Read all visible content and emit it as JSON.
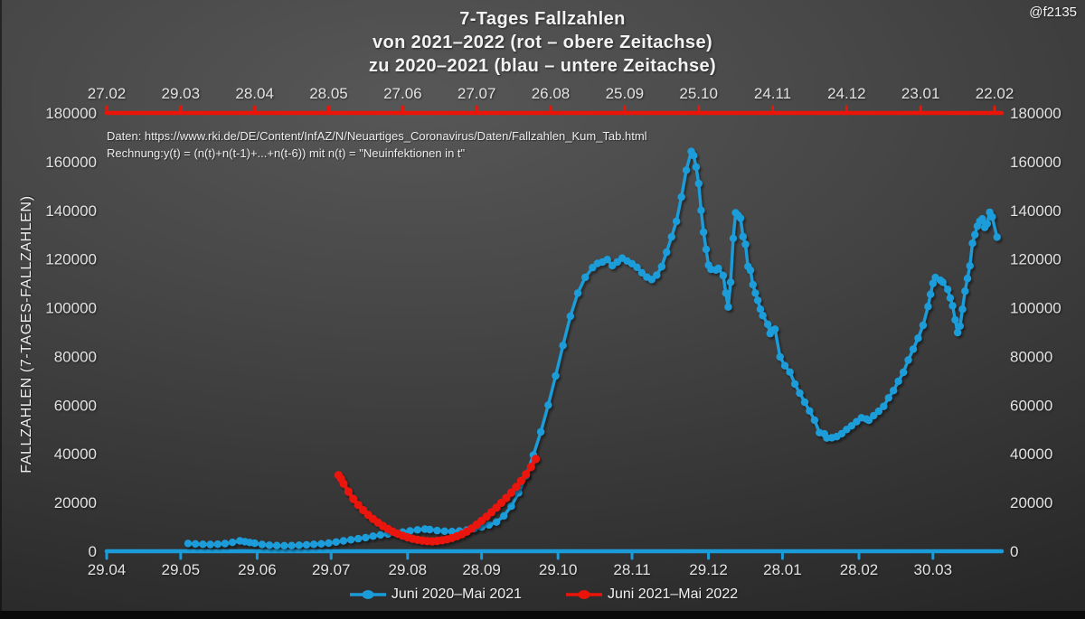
{
  "watermark": {
    "handle": "@f2135"
  },
  "title": {
    "line1": "7-Tages Fallzahlen",
    "line2": "von 2021–2022 (rot – obere Zeitachse)",
    "line3": "zu 2020–2021 (blau – untere Zeitachse)"
  },
  "annotation": {
    "line1": "Daten: https://www.rki.de/DE/Content/InfAZ/N/Neuartiges_Coronavirus/Daten/Fallzahlen_Kum_Tab.html",
    "line2": "Rechnung:y(t) = (n(t)+n(t-1)+...+n(t-6)) mit n(t) = \"Neuinfektionen in t\""
  },
  "chart_data": {
    "type": "line",
    "title": "7-Tages Fallzahlen von 2021–2022 (rot – obere Zeitachse) zu 2020–2021 (blau – untere Zeitachse)",
    "ylabel": "FALLZAHLEN (7-TAGES-FALLZAHLEN)",
    "ylim": [
      0,
      180000
    ],
    "yticks": [
      0,
      20000,
      40000,
      60000,
      80000,
      100000,
      120000,
      140000,
      160000,
      180000
    ],
    "grid": false,
    "marker": "circle",
    "legend_position": "bottom-center",
    "top_axis": {
      "color": "#ea1508",
      "labels": [
        "27.02",
        "29.03",
        "28.04",
        "28.05",
        "27.06",
        "27.07",
        "26.08",
        "25.09",
        "25.10",
        "24.11",
        "24.12",
        "23.01",
        "22.02"
      ],
      "day_offsets": [
        0,
        30,
        60,
        90,
        120,
        150,
        180,
        210,
        240,
        270,
        300,
        330,
        360
      ]
    },
    "bottom_axis": {
      "color": "#1b9cd9",
      "labels": [
        "29.04",
        "29.05",
        "29.06",
        "29.07",
        "29.08",
        "28.09",
        "29.10",
        "28.11",
        "29.12",
        "28.01",
        "28.02",
        "30.03"
      ],
      "day_offsets": [
        0,
        30,
        61,
        91,
        122,
        152,
        183,
        213,
        244,
        274,
        305,
        335
      ]
    },
    "series": [
      {
        "name": "Juni 2020–Mai 2021",
        "color": "#1b9cd9",
        "axis": "bottom",
        "axis_day_offset": 33,
        "points": [
          [
            0,
            3200
          ],
          [
            3,
            3000
          ],
          [
            6,
            2850
          ],
          [
            9,
            2800
          ],
          [
            12,
            2900
          ],
          [
            15,
            3150
          ],
          [
            18,
            3650
          ],
          [
            21,
            4250
          ],
          [
            23,
            3950
          ],
          [
            25,
            3600
          ],
          [
            27,
            3300
          ],
          [
            30,
            2800
          ],
          [
            33,
            2500
          ],
          [
            36,
            2350
          ],
          [
            39,
            2300
          ],
          [
            42,
            2350
          ],
          [
            45,
            2500
          ],
          [
            48,
            2650
          ],
          [
            51,
            2850
          ],
          [
            54,
            3050
          ],
          [
            57,
            3350
          ],
          [
            60,
            3800
          ],
          [
            63,
            4250
          ],
          [
            66,
            4700
          ],
          [
            69,
            5150
          ],
          [
            72,
            5600
          ],
          [
            75,
            6200
          ],
          [
            78,
            6700
          ],
          [
            81,
            7100
          ],
          [
            84,
            7500
          ],
          [
            87,
            7850
          ],
          [
            90,
            8350
          ],
          [
            93,
            8800
          ],
          [
            96,
            9100
          ],
          [
            98,
            8900
          ],
          [
            101,
            8500
          ],
          [
            104,
            8250
          ],
          [
            107,
            8100
          ],
          [
            110,
            8300
          ],
          [
            113,
            8700
          ],
          [
            116,
            9200
          ],
          [
            119,
            9900
          ],
          [
            122,
            10800
          ],
          [
            125,
            12000
          ],
          [
            128,
            14500
          ],
          [
            131,
            18500
          ],
          [
            134,
            24000
          ],
          [
            137,
            31000
          ],
          [
            140,
            39500
          ],
          [
            143,
            49000
          ],
          [
            146,
            60000
          ],
          [
            149,
            72000
          ],
          [
            152,
            84500
          ],
          [
            155,
            96500
          ],
          [
            158,
            106000
          ],
          [
            161,
            112500
          ],
          [
            164,
            116500
          ],
          [
            166,
            118200
          ],
          [
            168,
            118800
          ],
          [
            170,
            119800
          ],
          [
            172,
            117300
          ],
          [
            174,
            118800
          ],
          [
            176,
            120400
          ],
          [
            178,
            119200
          ],
          [
            180,
            118100
          ],
          [
            182,
            116600
          ],
          [
            184,
            114400
          ],
          [
            186,
            112600
          ],
          [
            188,
            111600
          ],
          [
            190,
            113400
          ],
          [
            192,
            116900
          ],
          [
            194,
            122800
          ],
          [
            196,
            129100
          ],
          [
            198,
            135500
          ],
          [
            200,
            145500
          ],
          [
            202,
            156500
          ],
          [
            204,
            164200
          ],
          [
            205,
            162500
          ],
          [
            206,
            157800
          ],
          [
            207,
            151000
          ],
          [
            208,
            140000
          ],
          [
            209,
            131000
          ],
          [
            210,
            124000
          ],
          [
            211,
            117500
          ],
          [
            212,
            115800
          ],
          [
            214,
            115500
          ],
          [
            215,
            116200
          ],
          [
            217,
            113200
          ],
          [
            218,
            106000
          ],
          [
            219,
            100300
          ],
          [
            220,
            110500
          ],
          [
            221,
            128500
          ],
          [
            222,
            139000
          ],
          [
            223,
            138000
          ],
          [
            224,
            136800
          ],
          [
            225,
            129200
          ],
          [
            226,
            126000
          ],
          [
            227,
            117000
          ],
          [
            228,
            115400
          ],
          [
            229,
            109500
          ],
          [
            230,
            106000
          ],
          [
            231,
            103000
          ],
          [
            232,
            99400
          ],
          [
            233,
            96800
          ],
          [
            235,
            93200
          ],
          [
            236,
            89400
          ],
          [
            237,
            90800
          ],
          [
            238,
            91200
          ],
          [
            240,
            79800
          ],
          [
            242,
            76200
          ],
          [
            244,
            73600
          ],
          [
            246,
            68700
          ],
          [
            248,
            64900
          ],
          [
            250,
            61200
          ],
          [
            252,
            57600
          ],
          [
            254,
            53800
          ],
          [
            256,
            48700
          ],
          [
            258,
            48200
          ],
          [
            259,
            46500
          ],
          [
            261,
            46600
          ],
          [
            263,
            47100
          ],
          [
            265,
            48300
          ],
          [
            267,
            50000
          ],
          [
            269,
            51500
          ],
          [
            271,
            53200
          ],
          [
            273,
            54800
          ],
          [
            275,
            54300
          ],
          [
            276,
            53800
          ],
          [
            278,
            55700
          ],
          [
            280,
            57500
          ],
          [
            282,
            59500
          ],
          [
            284,
            63000
          ],
          [
            286,
            66000
          ],
          [
            288,
            69800
          ],
          [
            290,
            73500
          ],
          [
            292,
            78500
          ],
          [
            294,
            83000
          ],
          [
            296,
            87500
          ],
          [
            298,
            92800
          ],
          [
            300,
            100500
          ],
          [
            301,
            105500
          ],
          [
            302,
            110000
          ],
          [
            303,
            112400
          ],
          [
            305,
            111300
          ],
          [
            306,
            110500
          ],
          [
            308,
            107500
          ],
          [
            309,
            104000
          ],
          [
            310,
            100800
          ],
          [
            311,
            95000
          ],
          [
            312,
            89800
          ],
          [
            313,
            92500
          ],
          [
            314,
            99400
          ],
          [
            315,
            106800
          ],
          [
            316,
            112000
          ],
          [
            317,
            117200
          ],
          [
            318,
            126500
          ],
          [
            319,
            130000
          ],
          [
            320,
            133500
          ],
          [
            321,
            135500
          ],
          [
            322,
            136500
          ],
          [
            323,
            133000
          ],
          [
            324,
            134500
          ],
          [
            325,
            139200
          ],
          [
            326,
            137300
          ],
          [
            328,
            129000
          ]
        ]
      },
      {
        "name": "Juni 2021–Mai 2022",
        "color": "#ea1508",
        "axis": "top",
        "axis_day_offset": 94,
        "points": [
          [
            0,
            31200
          ],
          [
            1,
            29800
          ],
          [
            2,
            27800
          ],
          [
            4,
            24500
          ],
          [
            6,
            21500
          ],
          [
            8,
            19000
          ],
          [
            10,
            16900
          ],
          [
            12,
            15000
          ],
          [
            14,
            13300
          ],
          [
            16,
            11800
          ],
          [
            18,
            10400
          ],
          [
            20,
            9200
          ],
          [
            22,
            8100
          ],
          [
            24,
            7200
          ],
          [
            26,
            6400
          ],
          [
            28,
            5700
          ],
          [
            30,
            5150
          ],
          [
            32,
            4700
          ],
          [
            34,
            4400
          ],
          [
            36,
            4150
          ],
          [
            38,
            4100
          ],
          [
            40,
            4250
          ],
          [
            42,
            4500
          ],
          [
            44,
            4900
          ],
          [
            46,
            5450
          ],
          [
            48,
            6150
          ],
          [
            50,
            7000
          ],
          [
            52,
            8100
          ],
          [
            54,
            9400
          ],
          [
            56,
            10900
          ],
          [
            58,
            12500
          ],
          [
            60,
            14200
          ],
          [
            62,
            16000
          ],
          [
            64,
            17900
          ],
          [
            66,
            19900
          ],
          [
            68,
            21900
          ],
          [
            70,
            24100
          ],
          [
            72,
            26400
          ],
          [
            74,
            28900
          ],
          [
            76,
            31600
          ],
          [
            78,
            34600
          ],
          [
            80,
            37900
          ]
        ]
      }
    ]
  }
}
